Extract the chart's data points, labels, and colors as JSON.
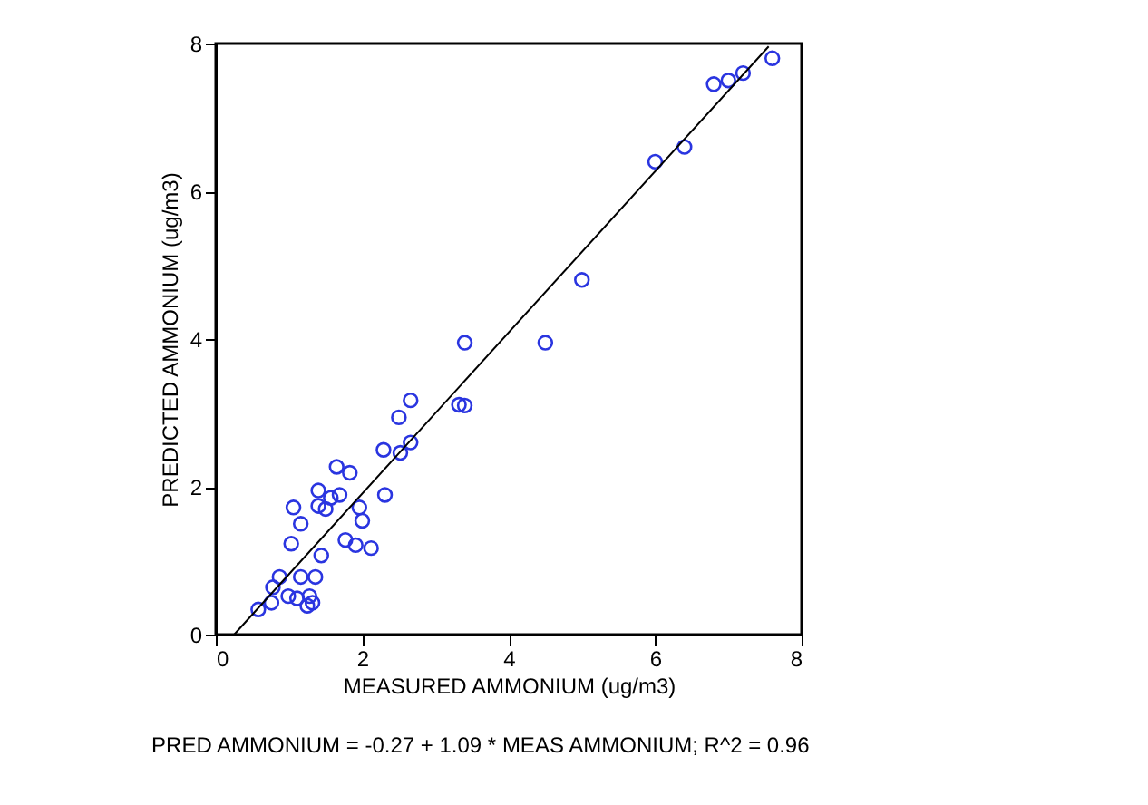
{
  "chart_data": {
    "type": "scatter",
    "xlabel": "MEASURED AMMONIUM (ug/m3)",
    "ylabel": "PREDICTED AMMONIUM (ug/m3)",
    "annotations": [
      "PRED AMMONIUM = -0.27 + 1.09 * MEAS AMMONIUM; R^2 = 0.96"
    ],
    "xlim": [
      0,
      8
    ],
    "ylim": [
      0,
      8
    ],
    "xticks": [
      0,
      2,
      4,
      6,
      8
    ],
    "yticks": [
      0,
      2,
      4,
      6,
      8
    ],
    "grid": false,
    "series": [
      {
        "marker": "circle",
        "color": "#2a35e0",
        "x": [
          7.6,
          7.2,
          7.0,
          6.8,
          6.4,
          6.0,
          5.0,
          4.5,
          3.4,
          3.4,
          2.66,
          2.5,
          3.32,
          2.29,
          2.52,
          2.66,
          1.65,
          1.83,
          2.31,
          1.4,
          1.57,
          1.69,
          1.4,
          1.5,
          1.06,
          1.96,
          2.0,
          1.16,
          1.03,
          1.77,
          1.91,
          2.12,
          1.44,
          0.87,
          1.16,
          1.36,
          0.78,
          0.99,
          1.11,
          1.28,
          1.32,
          0.58,
          0.76,
          1.25
        ],
        "values": [
          7.8,
          7.6,
          7.5,
          7.45,
          6.6,
          6.4,
          4.8,
          3.95,
          3.95,
          3.1,
          3.17,
          2.94,
          3.11,
          2.5,
          2.46,
          2.6,
          2.27,
          2.19,
          1.89,
          1.95,
          1.85,
          1.89,
          1.74,
          1.7,
          1.72,
          1.72,
          1.54,
          1.5,
          1.23,
          1.28,
          1.21,
          1.17,
          1.07,
          0.78,
          0.78,
          0.78,
          0.64,
          0.52,
          0.49,
          0.52,
          0.43,
          0.34,
          0.43,
          0.39
        ]
      },
      {
        "type": "line",
        "color": "#000000",
        "line_style": "solid",
        "marker": "none",
        "x": [
          0.25,
          7.55
        ],
        "values": [
          0,
          7.96
        ]
      }
    ]
  }
}
